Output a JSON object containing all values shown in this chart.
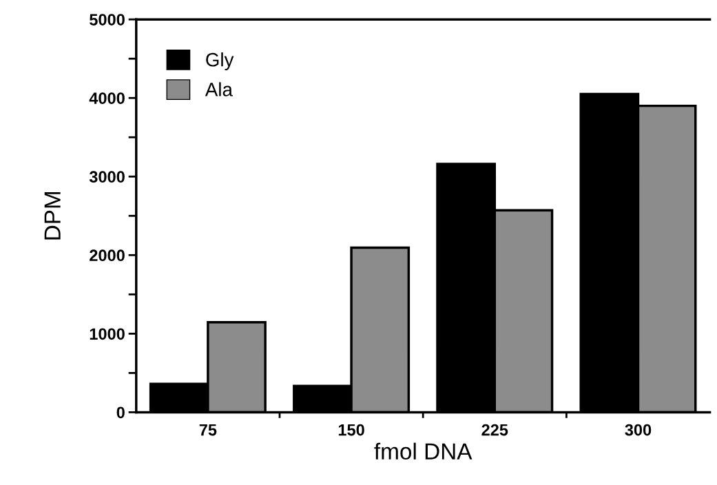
{
  "chart_data": {
    "type": "bar",
    "xlabel": "fmol DNA",
    "ylabel": "DPM",
    "categories": [
      "75",
      "150",
      "225",
      "300"
    ],
    "series": [
      {
        "name": "Gly",
        "color": "#000000",
        "values": [
          360,
          335,
          3160,
          4050
        ]
      },
      {
        "name": "Ala",
        "color": "#8c8c8c",
        "values": [
          1145,
          2095,
          2570,
          3900
        ]
      }
    ],
    "ylim": [
      0,
      5000
    ],
    "yticks": [
      0,
      {
        "value": 500,
        "label": null
      },
      1000,
      {
        "value": 1500,
        "label": null
      },
      2000,
      {
        "value": 2500,
        "label": null
      },
      3000,
      {
        "value": 3500,
        "label": null
      },
      4000,
      {
        "value": 4500,
        "label": null
      },
      5000
    ],
    "legend": "top left",
    "grid": false
  }
}
